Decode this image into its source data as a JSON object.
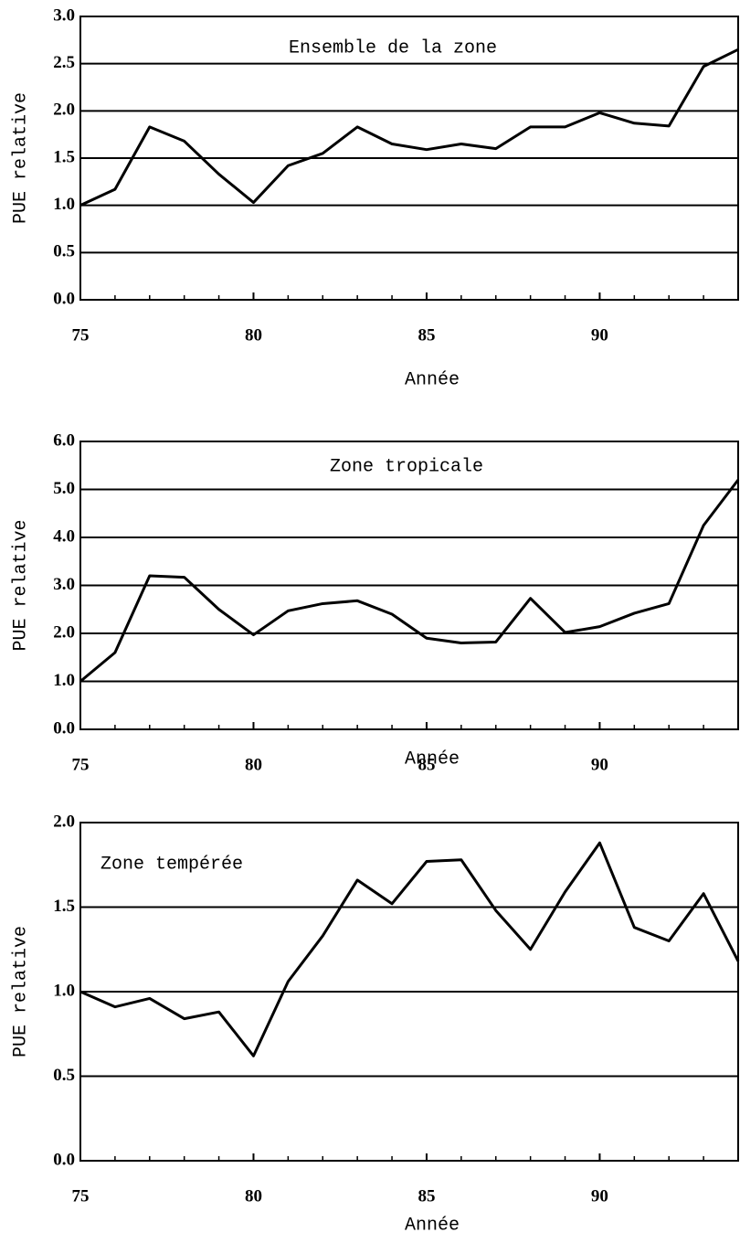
{
  "chart_data": [
    {
      "type": "line",
      "title": "Ensemble de la zone",
      "xlabel": "Année",
      "ylabel": "PUE relative",
      "x": [
        75,
        76,
        77,
        78,
        79,
        80,
        81,
        82,
        83,
        84,
        85,
        86,
        87,
        88,
        89,
        90,
        91,
        92,
        93,
        94
      ],
      "values": [
        1.0,
        1.17,
        1.83,
        1.68,
        1.33,
        1.03,
        1.42,
        1.55,
        1.83,
        1.65,
        1.59,
        1.65,
        1.6,
        1.83,
        1.83,
        1.98,
        1.87,
        1.84,
        2.47,
        2.65
      ],
      "color": "#000000",
      "xlim": [
        75,
        94
      ],
      "xticks": [
        75,
        80,
        85,
        90
      ],
      "ylim": [
        0,
        3
      ],
      "yticks": [
        {
          "value": 0,
          "label": "0.0"
        },
        0.5,
        {
          "value": 1,
          "label": "1.0"
        },
        1.5,
        {
          "value": 2,
          "label": "2.0"
        },
        2.5,
        {
          "value": 3,
          "label": "3.0"
        }
      ],
      "grid": true
    },
    {
      "type": "line",
      "title": "Zone tropicale",
      "xlabel": "Année",
      "ylabel": "PUE relative",
      "x": [
        75,
        76,
        77,
        78,
        79,
        80,
        81,
        82,
        83,
        84,
        85,
        86,
        87,
        88,
        89,
        90,
        91,
        92,
        93,
        94
      ],
      "values": [
        1.0,
        1.6,
        3.2,
        3.17,
        2.5,
        1.97,
        2.47,
        2.62,
        2.68,
        2.4,
        1.9,
        1.8,
        1.82,
        2.73,
        2.02,
        2.14,
        2.42,
        2.62,
        4.25,
        5.2
      ],
      "color": "#000000",
      "xlim": [
        75,
        94
      ],
      "xticks": [
        75,
        80,
        85,
        90
      ],
      "ylim": [
        0,
        6
      ],
      "yticks": [
        {
          "value": 0,
          "label": "0.0"
        },
        {
          "value": 1,
          "label": "1.0"
        },
        {
          "value": 2,
          "label": "2.0"
        },
        {
          "value": 3,
          "label": "3.0"
        },
        {
          "value": 4,
          "label": "4.0"
        },
        {
          "value": 5,
          "label": "5.0"
        },
        {
          "value": 6,
          "label": "6.0"
        }
      ],
      "grid": true
    },
    {
      "type": "line",
      "title": "Zone tempérée",
      "xlabel": "Année",
      "ylabel": "PUE relative",
      "x": [
        75,
        76,
        77,
        78,
        79,
        80,
        81,
        82,
        83,
        84,
        85,
        86,
        87,
        88,
        89,
        90,
        91,
        92,
        93,
        94
      ],
      "values": [
        1.0,
        0.91,
        0.96,
        0.84,
        0.88,
        0.62,
        1.06,
        1.33,
        1.66,
        1.52,
        1.77,
        1.78,
        1.48,
        1.25,
        1.59,
        1.88,
        1.38,
        1.3,
        1.58,
        1.18
      ],
      "color": "#000000",
      "xlim": [
        75,
        94
      ],
      "xticks": [
        75,
        80,
        85,
        90
      ],
      "ylim": [
        0,
        2
      ],
      "yticks": [
        {
          "value": 0,
          "label": "0.0"
        },
        0.5,
        {
          "value": 1,
          "label": "1.0"
        },
        1.5,
        {
          "value": 2,
          "label": "2.0"
        }
      ],
      "grid": true
    }
  ]
}
